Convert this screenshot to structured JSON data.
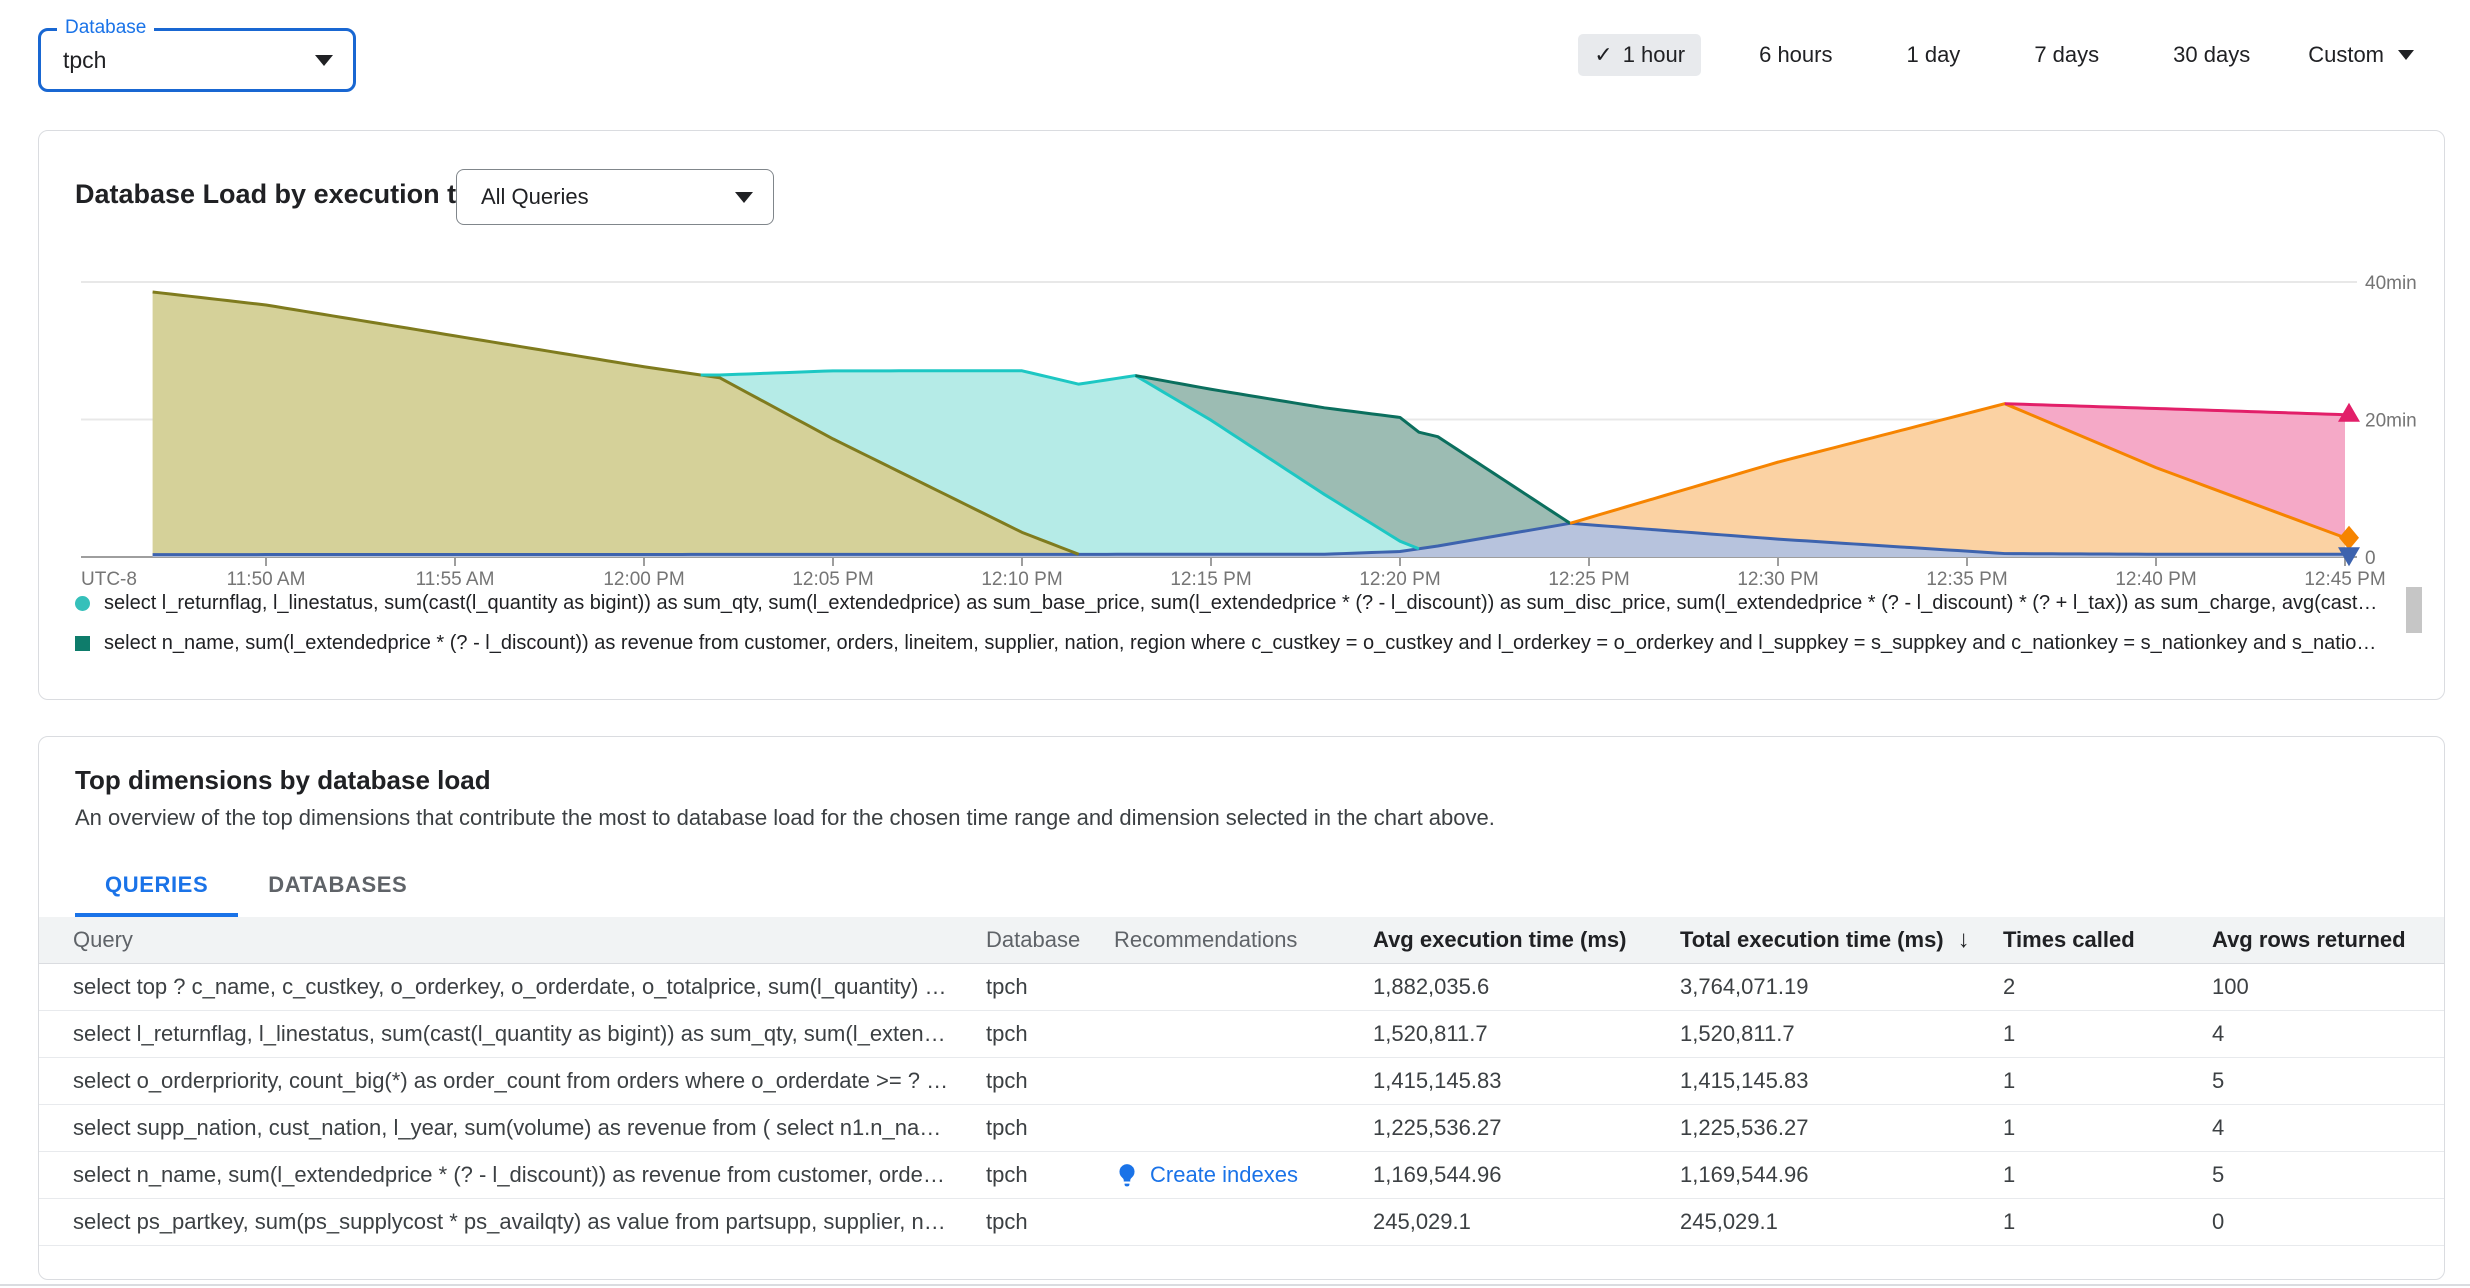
{
  "header": {
    "database_select": {
      "label": "Database",
      "value": "tpch"
    },
    "time_range": {
      "options": [
        {
          "label": "1 hour",
          "selected": true
        },
        {
          "label": "6 hours",
          "selected": false
        },
        {
          "label": "1 day",
          "selected": false
        },
        {
          "label": "7 days",
          "selected": false
        },
        {
          "label": "30 days",
          "selected": false
        }
      ],
      "custom_label": "Custom"
    }
  },
  "load_chart_card": {
    "title": "Database Load by execution time",
    "query_filter": {
      "value": "All Queries"
    },
    "chart_data": {
      "type": "area",
      "stacked": true,
      "title": "Database Load by execution time",
      "x_axis": {
        "label": "UTC-8",
        "minutes_origin": "11:45 AM",
        "start_minute": 2,
        "end_minute": 60,
        "tick_minutes": [
          5,
          10,
          15,
          20,
          25,
          30,
          35,
          40,
          45,
          50,
          55,
          60
        ],
        "tick_labels": [
          "11:50 AM",
          "11:55 AM",
          "12:00 PM",
          "12:05 PM",
          "12:10 PM",
          "12:15 PM",
          "12:20 PM",
          "12:25 PM",
          "12:30 PM",
          "12:35 PM",
          "12:40 PM",
          "12:45 PM"
        ]
      },
      "y_axis": {
        "unit": "min",
        "tick_values": [
          0,
          20,
          40
        ],
        "tick_labels": [
          "0",
          "20min",
          "40min"
        ],
        "max": 42
      },
      "series": [
        {
          "name": "blue-series",
          "stroke": "#3d63ae",
          "fill": "#b7c3dd",
          "points": [
            [
              2,
              0.35
            ],
            [
              33,
              0.4
            ],
            [
              35,
              0.8
            ],
            [
              36,
              1.6
            ],
            [
              39.5,
              4.9
            ],
            [
              45,
              2.6
            ],
            [
              51,
              0.5
            ],
            [
              55,
              0.4
            ],
            [
              60,
              0.4
            ]
          ]
        },
        {
          "name": "olive-series",
          "stroke": "#7f7b1e",
          "fill": "#d5d199",
          "points": [
            [
              2,
              38.2
            ],
            [
              5,
              36.3
            ],
            [
              10,
              31.8
            ],
            [
              15,
              27.3
            ],
            [
              17,
              25.7
            ],
            [
              20,
              16.8
            ],
            [
              25,
              3.2
            ],
            [
              26.5,
              0
            ],
            [
              60,
              0
            ]
          ]
        },
        {
          "name": "cyan-series",
          "stroke": "#1dc7c3",
          "fill": "#b5ebe7",
          "points": [
            [
              2,
              0
            ],
            [
              16.5,
              0
            ],
            [
              17,
              0.4
            ],
            [
              20,
              9.9
            ],
            [
              25,
              23.5
            ],
            [
              28,
              26
            ],
            [
              30,
              19.5
            ],
            [
              35,
              1.5
            ],
            [
              35.5,
              0
            ],
            [
              60,
              0
            ]
          ]
        },
        {
          "name": "teal-series",
          "stroke": "#0b6f5e",
          "fill": "#9cbcb3",
          "points": [
            [
              2,
              0
            ],
            [
              28,
              0
            ],
            [
              30,
              4.5
            ],
            [
              35,
              18
            ],
            [
              36,
              15.9
            ],
            [
              39.5,
              0
            ],
            [
              60,
              0
            ]
          ]
        },
        {
          "name": "orange-series",
          "stroke": "#f68400",
          "fill": "#fbd2a3",
          "points": [
            [
              2,
              0
            ],
            [
              39.5,
              0
            ],
            [
              45,
              11.2
            ],
            [
              51,
              21.8
            ],
            [
              55,
              12.6
            ],
            [
              60,
              2.4
            ]
          ]
        },
        {
          "name": "pink-series",
          "stroke": "#e21f69",
          "fill": "#f5a9c7",
          "points": [
            [
              2,
              0
            ],
            [
              51,
              0
            ],
            [
              55,
              8.6
            ],
            [
              60,
              17.9
            ]
          ]
        }
      ],
      "end_markers": [
        {
          "shape": "triangle-up",
          "color": "#e21f69",
          "value": 20.7
        },
        {
          "shape": "diamond",
          "color": "#f68400",
          "value": 2.8
        },
        {
          "shape": "triangle-down",
          "color": "#3d63ae",
          "value": 0.4
        }
      ]
    },
    "legend": [
      {
        "marker": "circle",
        "color": "#35c0ba",
        "label": "select l_returnflag, l_linestatus, sum(cast(l_quantity as bigint)) as sum_qty, sum(l_extendedprice) as sum_base_price, sum(l_extendedprice * (? - l_discount)) as sum_disc_price, sum(l_extendedprice * (? - l_discount) * (? + l_tax)) as sum_charge, avg(cast(l_quantity as …"
      },
      {
        "marker": "square",
        "color": "#0e7c6b",
        "label": "select n_name, sum(l_extendedprice * (? - l_discount)) as revenue from customer, orders, lineitem, supplier, nation, region where c_custkey = o_custkey and l_orderkey = o_orderkey and l_suppkey = s_suppkey and c_nationkey = s_nationkey and s_nationkey = n_nation…"
      }
    ]
  },
  "top_dimensions_card": {
    "title": "Top dimensions by database load",
    "description": "An overview of the top dimensions that contribute the most to database load for the chosen time range and dimension selected in the chart above.",
    "tabs": [
      {
        "label": "QUERIES",
        "active": true
      },
      {
        "label": "DATABASES",
        "active": false
      }
    ],
    "table": {
      "columns": [
        {
          "label": "Query",
          "emphasis": false
        },
        {
          "label": "Database",
          "emphasis": false
        },
        {
          "label": "Recommendations",
          "emphasis": false
        },
        {
          "label": "Avg execution time (ms)",
          "emphasis": true
        },
        {
          "label": "Total execution time (ms)",
          "emphasis": true,
          "sorted": "desc"
        },
        {
          "label": "Times called",
          "emphasis": true
        },
        {
          "label": "Avg rows returned",
          "emphasis": true
        }
      ],
      "rows": [
        {
          "query": "select top ? c_name, c_custkey, o_orderkey, o_orderdate, o_totalprice, sum(l_quantity) fro…",
          "database": "tpch",
          "recommendation": "",
          "avg_execution_ms": "1,882,035.6",
          "total_execution_ms": "3,764,071.19",
          "times_called": "2",
          "avg_rows_returned": "100"
        },
        {
          "query": "select l_returnflag, l_linestatus, sum(cast(l_quantity as bigint)) as sum_qty, sum(l_extend…",
          "database": "tpch",
          "recommendation": "",
          "avg_execution_ms": "1,520,811.7",
          "total_execution_ms": "1,520,811.7",
          "times_called": "1",
          "avg_rows_returned": "4"
        },
        {
          "query": "select o_orderpriority, count_big(*) as order_count from orders where o_orderdate >= ? a…",
          "database": "tpch",
          "recommendation": "",
          "avg_execution_ms": "1,415,145.83",
          "total_execution_ms": "1,415,145.83",
          "times_called": "1",
          "avg_rows_returned": "5"
        },
        {
          "query": "select supp_nation, cust_nation, l_year, sum(volume) as revenue from ( select n1.n_name…",
          "database": "tpch",
          "recommendation": "",
          "avg_execution_ms": "1,225,536.27",
          "total_execution_ms": "1,225,536.27",
          "times_called": "1",
          "avg_rows_returned": "4"
        },
        {
          "query": "select n_name, sum(l_extendedprice * (? - l_discount)) as revenue from customer, orders,…",
          "database": "tpch",
          "recommendation": "Create indexes",
          "avg_execution_ms": "1,169,544.96",
          "total_execution_ms": "1,169,544.96",
          "times_called": "1",
          "avg_rows_returned": "5"
        },
        {
          "query": "select ps_partkey, sum(ps_supplycost * ps_availqty) as value from partsupp, supplier, nat…",
          "database": "tpch",
          "recommendation": "",
          "avg_execution_ms": "245,029.1",
          "total_execution_ms": "245,029.1",
          "times_called": "1",
          "avg_rows_returned": "0"
        }
      ]
    }
  }
}
